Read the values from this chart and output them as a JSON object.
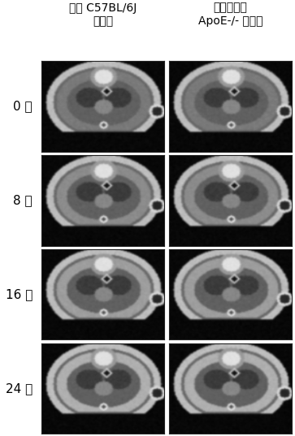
{
  "col_headers": [
    "정상 C57BL/6J\n마우스",
    "동맥경화증\nApoE-/- 마우스"
  ],
  "row_labels": [
    "0 주",
    "8 주",
    "16 주",
    "24 주"
  ],
  "n_rows": 4,
  "n_cols": 2,
  "background_color": "#ffffff",
  "label_color": "#000000",
  "header_fontsize": 10,
  "row_label_fontsize": 11
}
